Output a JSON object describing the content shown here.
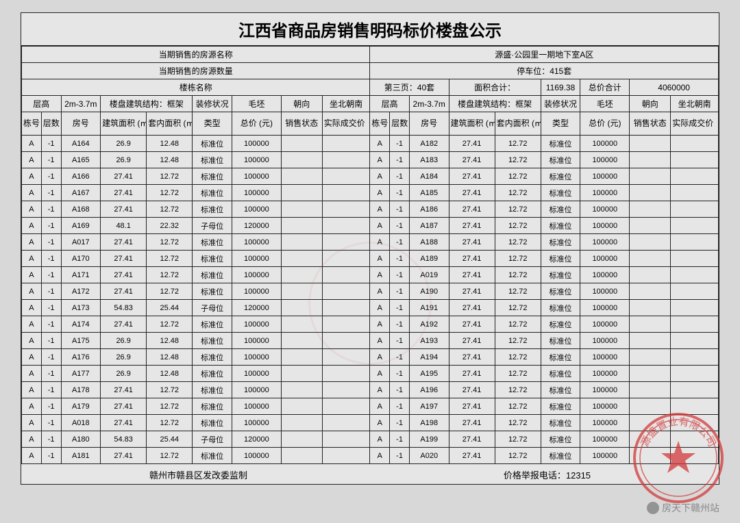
{
  "title": "江西省商品房销售明码标价楼盘公示",
  "header_left": {
    "row1": "当期销售的房源名称",
    "row2": "当期销售的房源数量",
    "row3": "楼栋名称"
  },
  "header_right": {
    "project": "源盛·公园里一期地下室A区",
    "parking_label": "停车位：",
    "parking_value": "415套",
    "page_label": "第三页：",
    "page_value": "40套",
    "area_total_label": "面积合计：",
    "area_total_value": "1169.38",
    "price_total_label": "总价合计",
    "price_total_value": "4060000"
  },
  "colhdr": {
    "ceng_gao": "层高",
    "range": "2m-3.7m",
    "struct_label": "楼盘建筑结构：",
    "struct_value": "框架",
    "zhuangxiu": "装修状况",
    "maopei": "毛坯",
    "chaoxiang": "朝向",
    "zuobei": "坐北朝南",
    "donghao": "栋号",
    "cengshu": "层数",
    "fanghao": "房号",
    "jzmj": "建筑面积 (㎡)",
    "tnmj": "套内面积 (㎡)",
    "leixing": "类型",
    "zongjia": "总价 (元)",
    "xszt": "销售状态",
    "sjcj": "实际成交价（元）"
  },
  "rows_left": [
    {
      "d": "A",
      "c": "-1",
      "f": "A164",
      "jz": "26.9",
      "tn": "12.48",
      "lx": "标准位",
      "zj": "100000"
    },
    {
      "d": "A",
      "c": "-1",
      "f": "A165",
      "jz": "26.9",
      "tn": "12.48",
      "lx": "标准位",
      "zj": "100000"
    },
    {
      "d": "A",
      "c": "-1",
      "f": "A166",
      "jz": "27.41",
      "tn": "12.72",
      "lx": "标准位",
      "zj": "100000"
    },
    {
      "d": "A",
      "c": "-1",
      "f": "A167",
      "jz": "27.41",
      "tn": "12.72",
      "lx": "标准位",
      "zj": "100000"
    },
    {
      "d": "A",
      "c": "-1",
      "f": "A168",
      "jz": "27.41",
      "tn": "12.72",
      "lx": "标准位",
      "zj": "100000"
    },
    {
      "d": "A",
      "c": "-1",
      "f": "A169",
      "jz": "48.1",
      "tn": "22.32",
      "lx": "子母位",
      "zj": "120000"
    },
    {
      "d": "A",
      "c": "-1",
      "f": "A017",
      "jz": "27.41",
      "tn": "12.72",
      "lx": "标准位",
      "zj": "100000"
    },
    {
      "d": "A",
      "c": "-1",
      "f": "A170",
      "jz": "27.41",
      "tn": "12.72",
      "lx": "标准位",
      "zj": "100000"
    },
    {
      "d": "A",
      "c": "-1",
      "f": "A171",
      "jz": "27.41",
      "tn": "12.72",
      "lx": "标准位",
      "zj": "100000"
    },
    {
      "d": "A",
      "c": "-1",
      "f": "A172",
      "jz": "27.41",
      "tn": "12.72",
      "lx": "标准位",
      "zj": "100000"
    },
    {
      "d": "A",
      "c": "-1",
      "f": "A173",
      "jz": "54.83",
      "tn": "25.44",
      "lx": "子母位",
      "zj": "120000"
    },
    {
      "d": "A",
      "c": "-1",
      "f": "A174",
      "jz": "27.41",
      "tn": "12.72",
      "lx": "标准位",
      "zj": "100000"
    },
    {
      "d": "A",
      "c": "-1",
      "f": "A175",
      "jz": "26.9",
      "tn": "12.48",
      "lx": "标准位",
      "zj": "100000"
    },
    {
      "d": "A",
      "c": "-1",
      "f": "A176",
      "jz": "26.9",
      "tn": "12.48",
      "lx": "标准位",
      "zj": "100000"
    },
    {
      "d": "A",
      "c": "-1",
      "f": "A177",
      "jz": "26.9",
      "tn": "12.48",
      "lx": "标准位",
      "zj": "100000"
    },
    {
      "d": "A",
      "c": "-1",
      "f": "A178",
      "jz": "27.41",
      "tn": "12.72",
      "lx": "标准位",
      "zj": "100000"
    },
    {
      "d": "A",
      "c": "-1",
      "f": "A179",
      "jz": "27.41",
      "tn": "12.72",
      "lx": "标准位",
      "zj": "100000"
    },
    {
      "d": "A",
      "c": "-1",
      "f": "A018",
      "jz": "27.41",
      "tn": "12.72",
      "lx": "标准位",
      "zj": "100000"
    },
    {
      "d": "A",
      "c": "-1",
      "f": "A180",
      "jz": "54.83",
      "tn": "25.44",
      "lx": "子母位",
      "zj": "120000"
    },
    {
      "d": "A",
      "c": "-1",
      "f": "A181",
      "jz": "27.41",
      "tn": "12.72",
      "lx": "标准位",
      "zj": "100000"
    }
  ],
  "rows_right": [
    {
      "d": "A",
      "c": "-1",
      "f": "A182",
      "jz": "27.41",
      "tn": "12.72",
      "lx": "标准位",
      "zj": "100000"
    },
    {
      "d": "A",
      "c": "-1",
      "f": "A183",
      "jz": "27.41",
      "tn": "12.72",
      "lx": "标准位",
      "zj": "100000"
    },
    {
      "d": "A",
      "c": "-1",
      "f": "A184",
      "jz": "27.41",
      "tn": "12.72",
      "lx": "标准位",
      "zj": "100000"
    },
    {
      "d": "A",
      "c": "-1",
      "f": "A185",
      "jz": "27.41",
      "tn": "12.72",
      "lx": "标准位",
      "zj": "100000"
    },
    {
      "d": "A",
      "c": "-1",
      "f": "A186",
      "jz": "27.41",
      "tn": "12.72",
      "lx": "标准位",
      "zj": "100000"
    },
    {
      "d": "A",
      "c": "-1",
      "f": "A187",
      "jz": "27.41",
      "tn": "12.72",
      "lx": "标准位",
      "zj": "100000"
    },
    {
      "d": "A",
      "c": "-1",
      "f": "A188",
      "jz": "27.41",
      "tn": "12.72",
      "lx": "标准位",
      "zj": "100000"
    },
    {
      "d": "A",
      "c": "-1",
      "f": "A189",
      "jz": "27.41",
      "tn": "12.72",
      "lx": "标准位",
      "zj": "100000"
    },
    {
      "d": "A",
      "c": "-1",
      "f": "A019",
      "jz": "27.41",
      "tn": "12.72",
      "lx": "标准位",
      "zj": "100000"
    },
    {
      "d": "A",
      "c": "-1",
      "f": "A190",
      "jz": "27.41",
      "tn": "12.72",
      "lx": "标准位",
      "zj": "100000"
    },
    {
      "d": "A",
      "c": "-1",
      "f": "A191",
      "jz": "27.41",
      "tn": "12.72",
      "lx": "标准位",
      "zj": "100000"
    },
    {
      "d": "A",
      "c": "-1",
      "f": "A192",
      "jz": "27.41",
      "tn": "12.72",
      "lx": "标准位",
      "zj": "100000"
    },
    {
      "d": "A",
      "c": "-1",
      "f": "A193",
      "jz": "27.41",
      "tn": "12.72",
      "lx": "标准位",
      "zj": "100000"
    },
    {
      "d": "A",
      "c": "-1",
      "f": "A194",
      "jz": "27.41",
      "tn": "12.72",
      "lx": "标准位",
      "zj": "100000"
    },
    {
      "d": "A",
      "c": "-1",
      "f": "A195",
      "jz": "27.41",
      "tn": "12.72",
      "lx": "标准位",
      "zj": "100000"
    },
    {
      "d": "A",
      "c": "-1",
      "f": "A196",
      "jz": "27.41",
      "tn": "12.72",
      "lx": "标准位",
      "zj": "100000"
    },
    {
      "d": "A",
      "c": "-1",
      "f": "A197",
      "jz": "27.41",
      "tn": "12.72",
      "lx": "标准位",
      "zj": "100000"
    },
    {
      "d": "A",
      "c": "-1",
      "f": "A198",
      "jz": "27.41",
      "tn": "12.72",
      "lx": "标准位",
      "zj": "100000"
    },
    {
      "d": "A",
      "c": "-1",
      "f": "A199",
      "jz": "27.41",
      "tn": "12.72",
      "lx": "标准位",
      "zj": "100000"
    },
    {
      "d": "A",
      "c": "-1",
      "f": "A020",
      "jz": "27.41",
      "tn": "12.72",
      "lx": "标准位",
      "zj": "100000"
    }
  ],
  "footer": {
    "left": "赣州市赣县区发改委监制",
    "right": "价格举报电话：12315"
  },
  "stamp_text": "源盛置业有限公司",
  "watermark": "房天下赣州站",
  "style": {
    "stamp_color": "#d23a3a",
    "border_color": "#222222",
    "bg": "#e6e6e6",
    "title_fontsize": 24,
    "cell_fontsize": 11
  }
}
